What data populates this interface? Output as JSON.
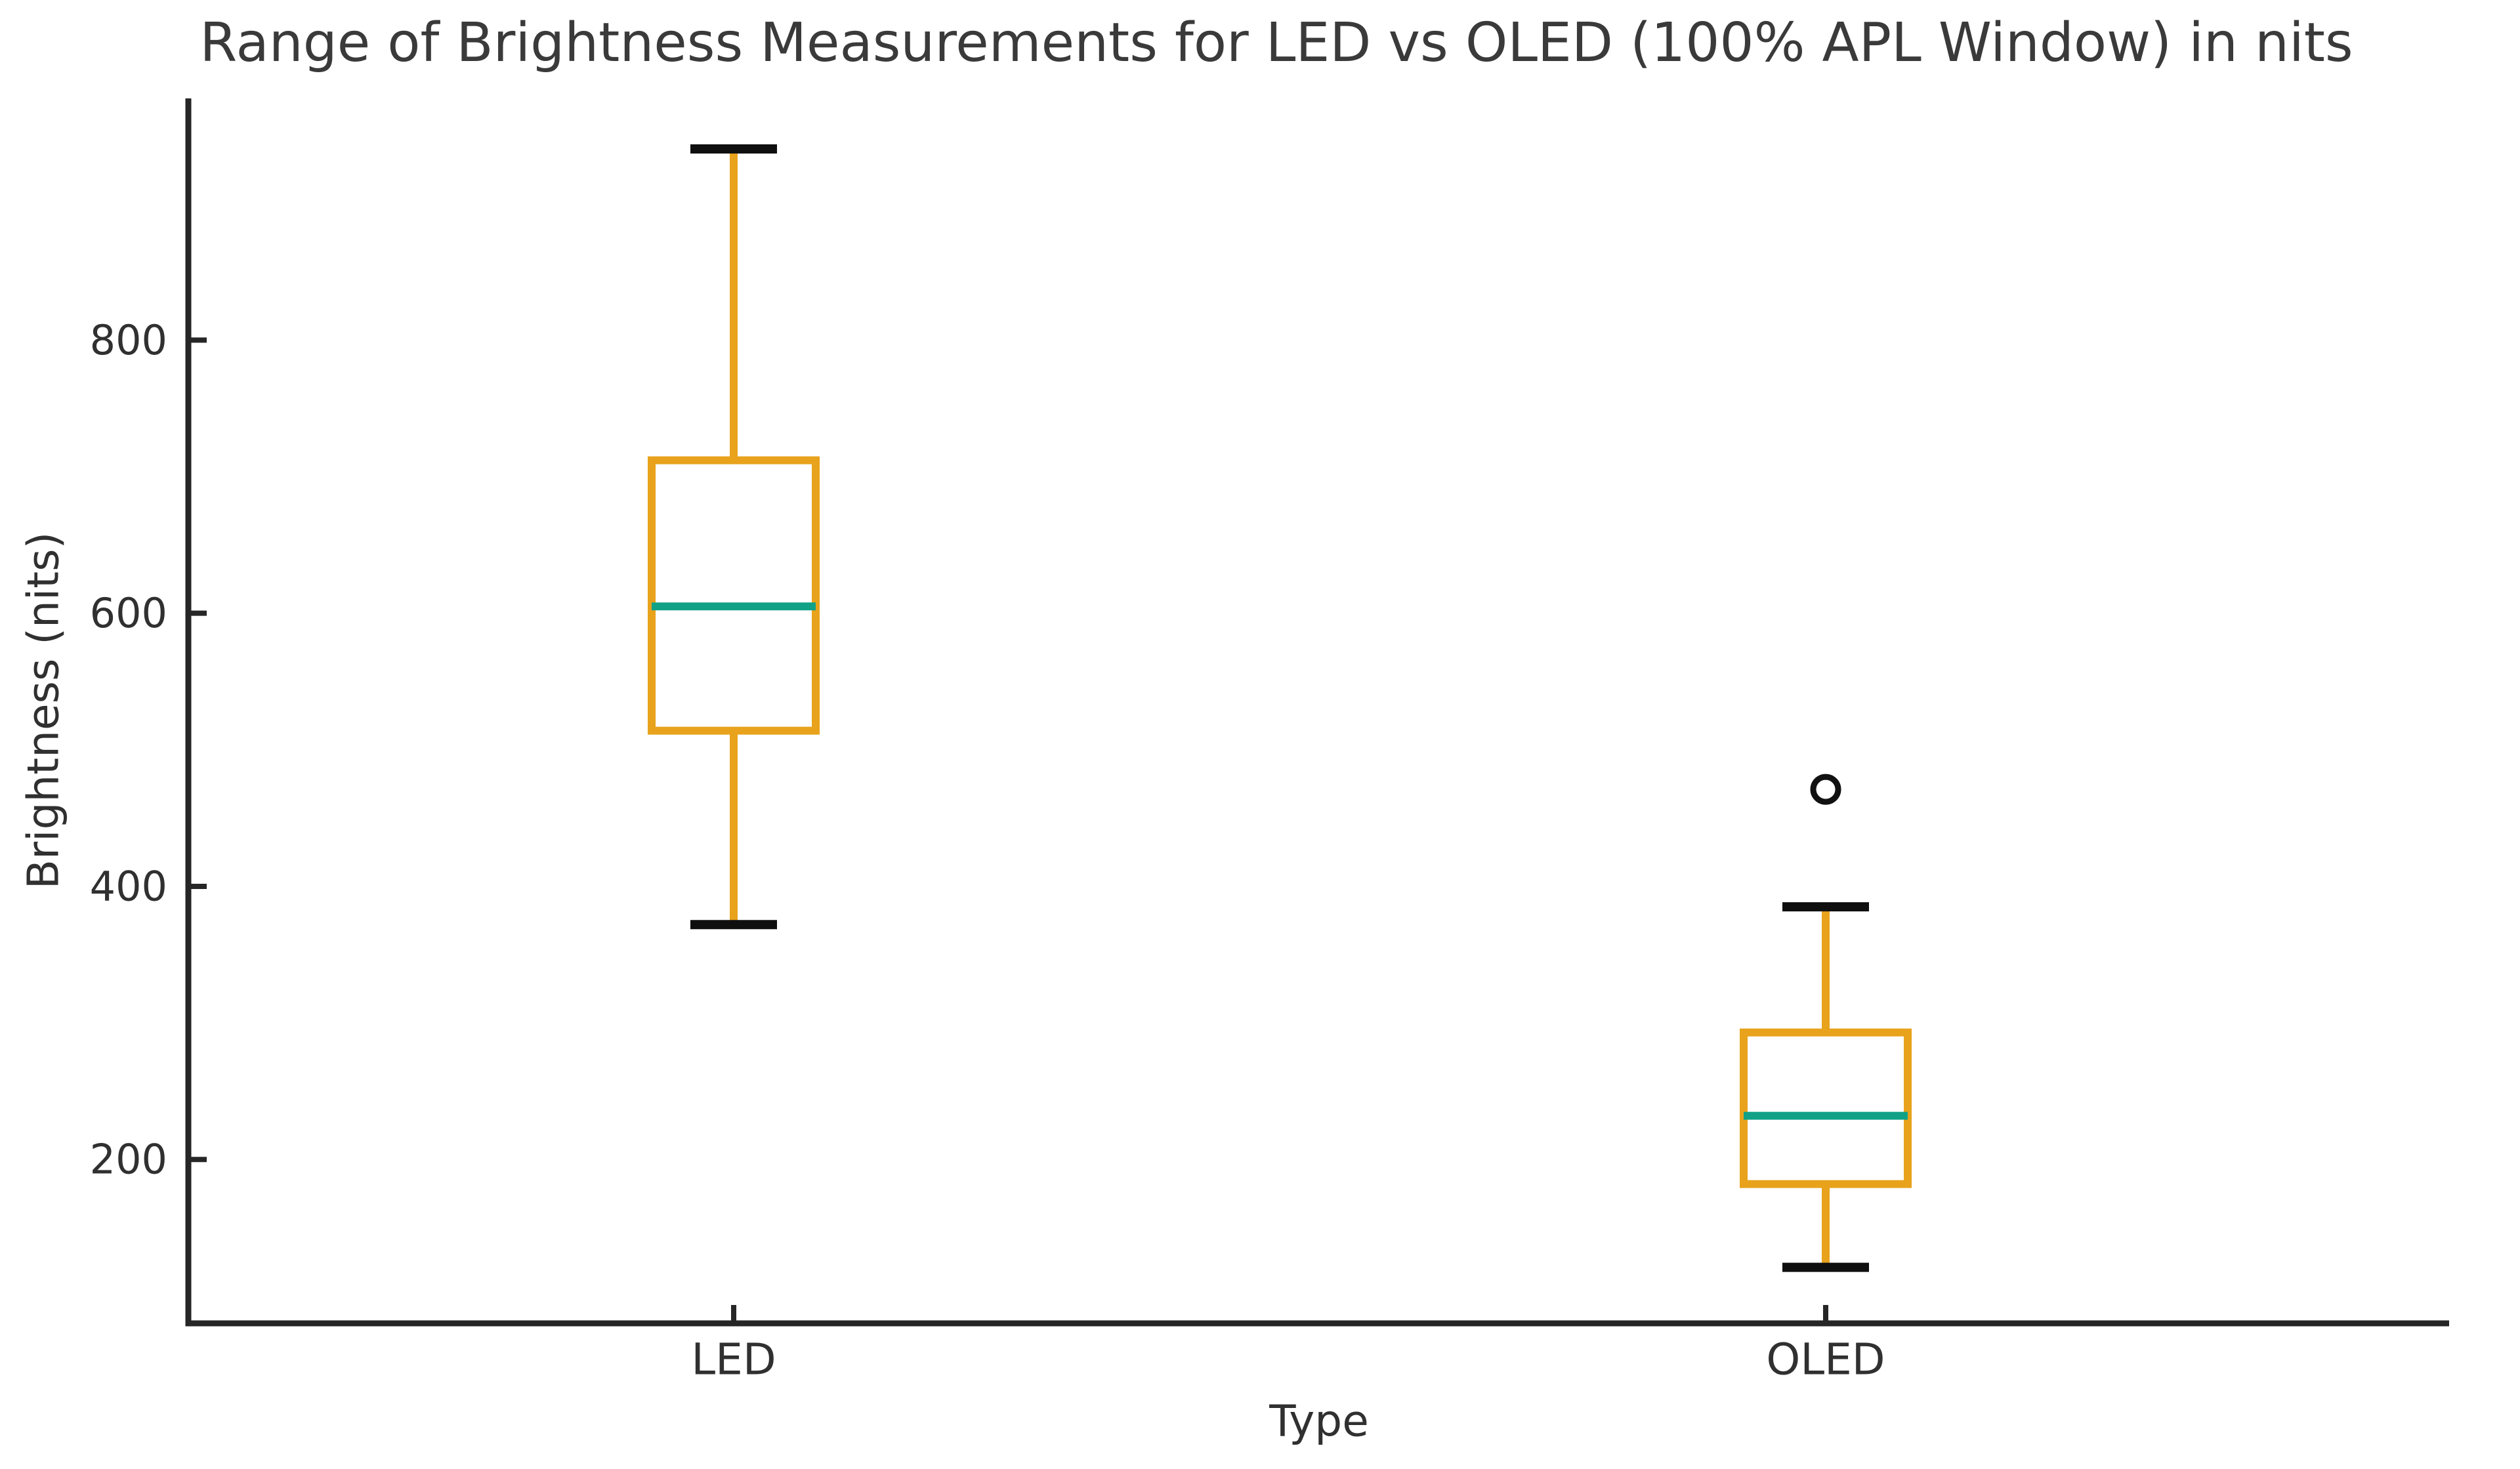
{
  "title": "Range of Brightness Measurements for LED vs OLED (100% APL Window) in nits",
  "chart_data": {
    "type": "box",
    "title": "Range of Brightness Measurements for LED vs OLED (100% APL Window) in nits",
    "xlabel": "Type",
    "ylabel": "Brightness (nits)",
    "categories": [
      "LED",
      "OLED"
    ],
    "ylim": [
      80,
      977
    ],
    "yticks": [
      200,
      400,
      600,
      800
    ],
    "grid": false,
    "legend": "none",
    "series": [
      {
        "name": "LED",
        "whisker_low": 372,
        "q1": 514,
        "median": 605,
        "q3": 712,
        "whisker_high": 940,
        "outliers": []
      },
      {
        "name": "OLED",
        "whisker_low": 121,
        "q1": 182,
        "median": 232,
        "q3": 293,
        "whisker_high": 385,
        "outliers": [
          471
        ]
      }
    ],
    "colors": {
      "box": "#E8A21C",
      "whisker": "#E8A21C",
      "median": "#11A187",
      "cap": "#0F0F0F",
      "outlier_stroke": "#111111",
      "axis": "#262626",
      "text": "#303030",
      "title_text": "#3a3a3a",
      "background": "#ffffff"
    }
  }
}
